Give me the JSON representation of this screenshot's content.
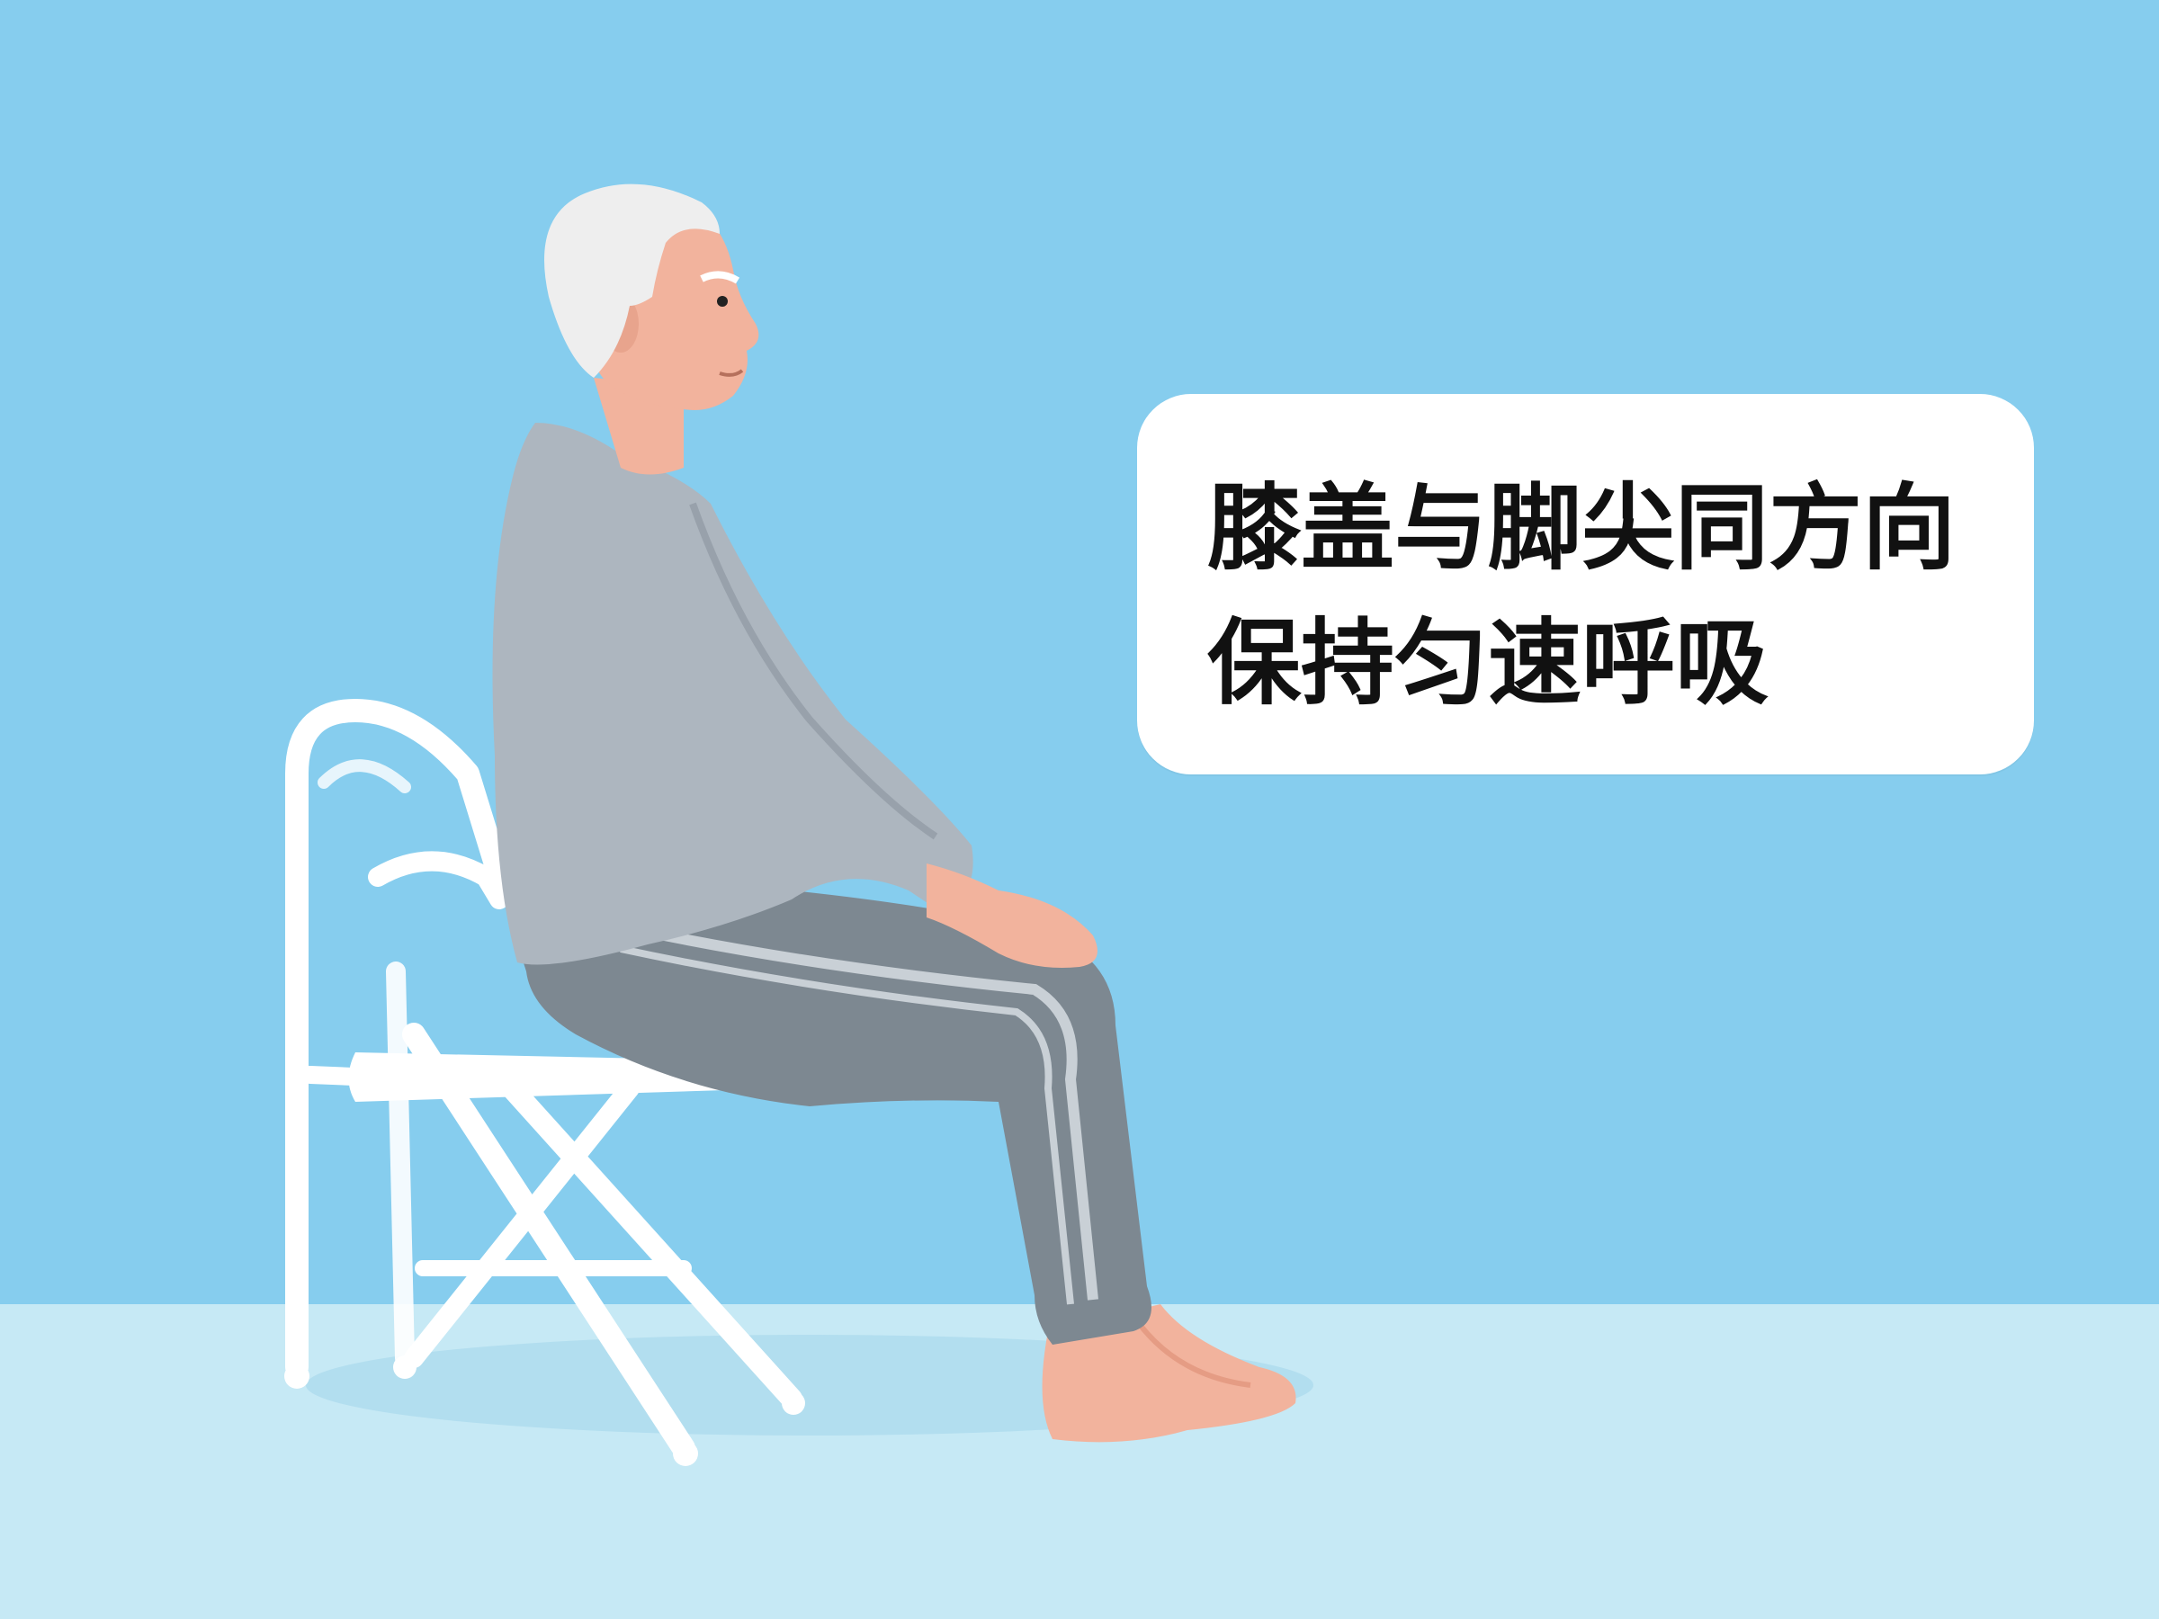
{
  "colors": {
    "wall": "#86cdee",
    "floor": "#c6e9f5",
    "caption_bg": "#ffffff",
    "caption_text": "#111111",
    "sweater": "#adb6bf",
    "pants": "#7d8891",
    "skin": "#f2b39d",
    "hair": "#eeeeee",
    "chair": "#ffffff"
  },
  "caption": {
    "line1": "膝盖与脚尖同方向",
    "line2": "保持匀速呼吸"
  },
  "icons": [
    "seated-man-illustration",
    "folding-chair-illustration"
  ]
}
